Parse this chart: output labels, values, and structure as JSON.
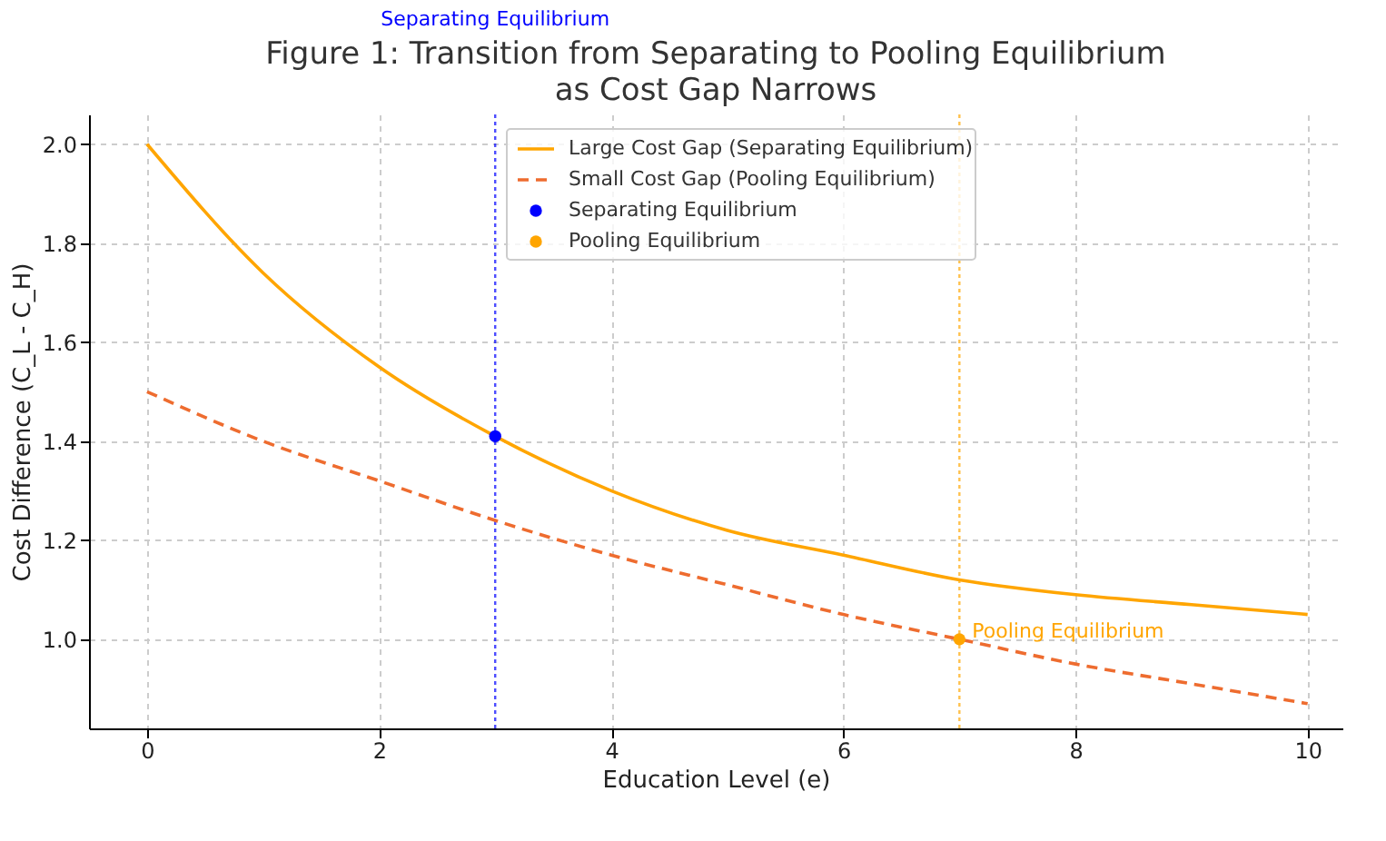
{
  "chart_data": {
    "type": "line",
    "title": "Figure 1: Transition from Separating to Pooling Equilibrium\nas Cost Gap Narrows",
    "xlabel": "Education Level (e)",
    "ylabel": "Cost Difference (C_L - C_H)",
    "xlim": [
      -0.5,
      10.3
    ],
    "ylim": [
      0.82,
      2.06
    ],
    "xticks": [
      0,
      2,
      4,
      6,
      8,
      10
    ],
    "yticks": [
      {
        "value": 1.0,
        "label": "1.0"
      },
      {
        "value": 1.2,
        "label": "1.2"
      },
      {
        "value": 1.4,
        "label": "1.4"
      },
      {
        "value": 1.6,
        "label": "1.6"
      },
      {
        "value": 1.8,
        "label": "1.8"
      },
      {
        "value": 2.0,
        "label": "2.0"
      }
    ],
    "grid": true,
    "legend": "top",
    "series": [
      {
        "name": "Large Cost Gap (Separating Equilibrium)",
        "type": "line",
        "line_style": "solid",
        "color": "#ffa500",
        "x": [
          0,
          1,
          2,
          3,
          4,
          5,
          6,
          7,
          8,
          9,
          10
        ],
        "values": [
          2.0,
          1.74,
          1.55,
          1.41,
          1.3,
          1.22,
          1.17,
          1.12,
          1.09,
          1.07,
          1.05
        ]
      },
      {
        "name": "Small Cost Gap (Pooling Equilibrium)",
        "type": "line",
        "line_style": "dashed",
        "color": "#ee6c2f",
        "x": [
          0,
          1,
          2,
          3,
          4,
          5,
          6,
          7,
          8,
          9,
          10
        ],
        "values": [
          1.5,
          1.4,
          1.32,
          1.24,
          1.17,
          1.11,
          1.05,
          1.0,
          0.95,
          0.91,
          0.87
        ]
      },
      {
        "name": "Separating Equilibrium",
        "type": "scatter",
        "marker": "circle",
        "color": "#0000ff",
        "x": [
          3
        ],
        "values": [
          1.41
        ]
      },
      {
        "name": "Pooling Equilibrium",
        "type": "scatter",
        "marker": "circle",
        "color": "#ffa500",
        "x": [
          7
        ],
        "values": [
          1.0
        ]
      }
    ],
    "ref_lines": [
      {
        "axis": "x",
        "value": 3,
        "label": "Separating Equilibrium",
        "color": "#0000ff",
        "line_style": "dotted"
      },
      {
        "axis": "x",
        "value": 7,
        "color": "#ffa500",
        "line_style": "dotted"
      }
    ],
    "annotations": [
      {
        "text": "Pooling Equilibrium",
        "x": 7,
        "y": 1.0
      }
    ]
  }
}
